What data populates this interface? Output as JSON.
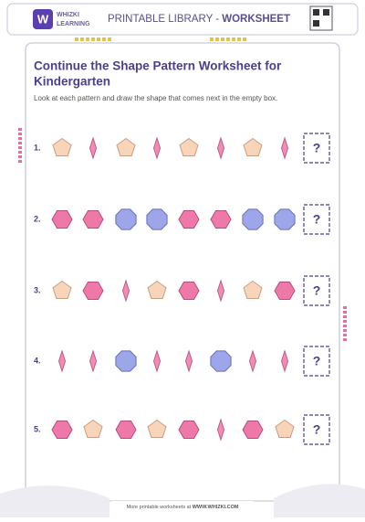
{
  "header": {
    "brand": [
      "WHIZKI",
      "LEARNING"
    ],
    "logo_letter": "W",
    "title": "PRINTABLE LIBRARY - ",
    "title_bold": "WORKSHEET"
  },
  "worksheet": {
    "title": [
      "Continue the Shape Pattern Worksheet for",
      "Kindergarten"
    ],
    "instructions": "Look at each pattern and draw the shape that comes next in the empty box.",
    "rows": [
      {
        "label": "1.",
        "answer": "?"
      },
      {
        "label": "2.",
        "answer": "?"
      },
      {
        "label": "3.",
        "answer": "?"
      },
      {
        "label": "4.",
        "answer": "?"
      },
      {
        "label": "5.",
        "answer": "?"
      }
    ]
  },
  "footer": {
    "text": "More printable worksheets at ",
    "link": "WWW.WHIZKI.COM"
  }
}
